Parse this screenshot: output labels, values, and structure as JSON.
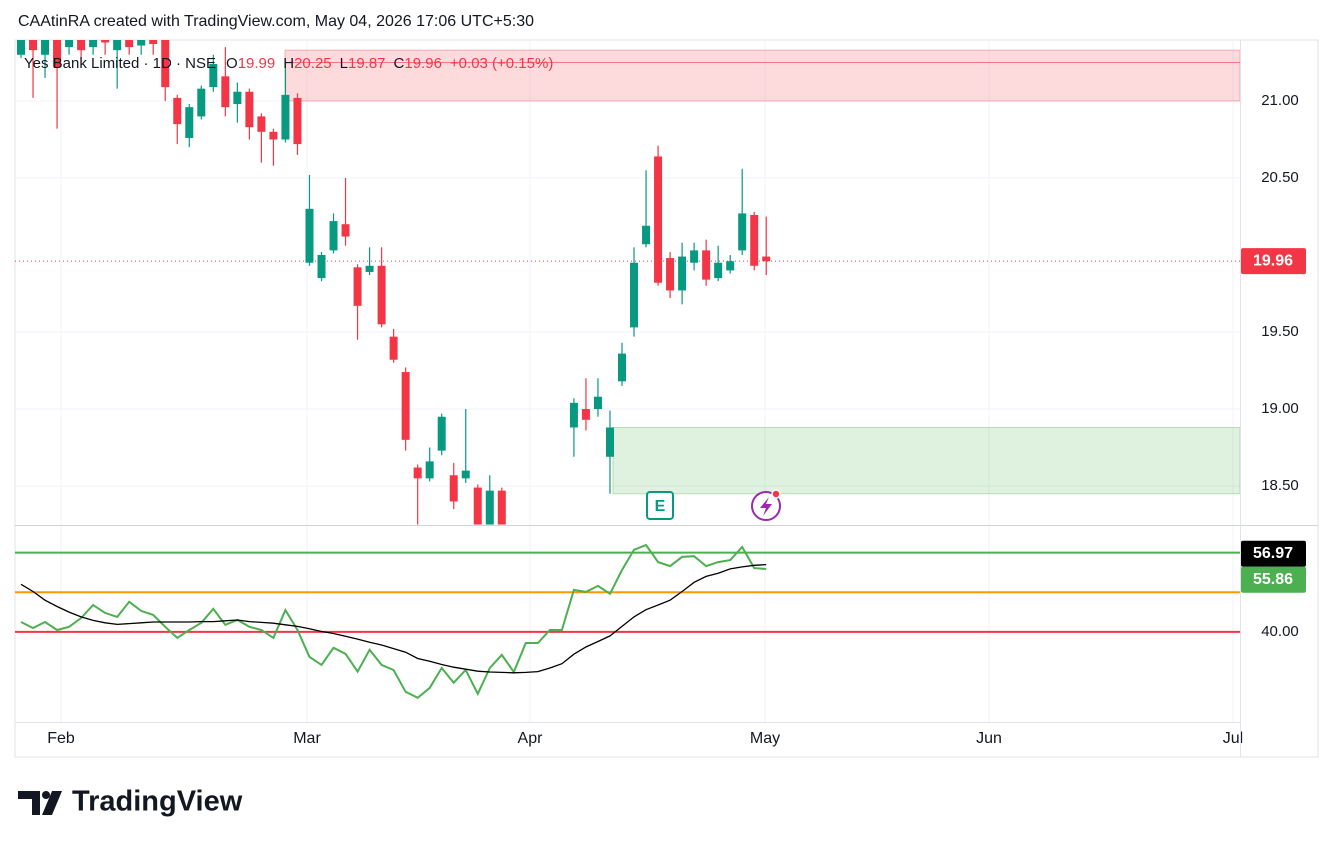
{
  "header": {
    "text": "CAAtinRA created with TradingView.com, May 04, 2026 17:06 UTC+5:30"
  },
  "footer": {
    "brand": "TradingView"
  },
  "chart_data": [
    {
      "type": "candlestick",
      "title": "Yes Bank Limited · 1D · NSE",
      "legend_keys": [
        "O",
        "H",
        "L",
        "C"
      ],
      "change_label": "+0.03 (+0.15%)",
      "up_color": "#089981",
      "down_color": "#f23645",
      "open": [
        21.3,
        21.42,
        21.3,
        21.42,
        21.35,
        21.42,
        21.35,
        21.42,
        21.33,
        21.42,
        21.36,
        21.42,
        21.4,
        21.02,
        20.76,
        20.9,
        21.09,
        21.16,
        20.98,
        21.06,
        20.9,
        20.8,
        20.75,
        21.02,
        19.95,
        19.85,
        20.03,
        20.2,
        19.92,
        19.89,
        19.93,
        19.47,
        19.24,
        18.62,
        18.55,
        18.73,
        18.57,
        18.55,
        18.49,
        18.25,
        18.47,
        null,
        null,
        null,
        null,
        null,
        18.88,
        19.0,
        19.0,
        18.69,
        19.18,
        19.53,
        20.07,
        20.64,
        19.98,
        19.77,
        19.95,
        20.03,
        19.85,
        19.9,
        20.03,
        20.26,
        19.99
      ],
      "high": [
        21.45,
        21.45,
        21.45,
        21.45,
        21.45,
        21.45,
        21.45,
        21.45,
        21.45,
        21.45,
        21.45,
        21.45,
        21.42,
        21.04,
        20.98,
        21.1,
        21.3,
        21.35,
        21.12,
        21.08,
        20.92,
        20.82,
        21.25,
        21.05,
        20.52,
        20.02,
        20.27,
        20.5,
        19.94,
        20.05,
        20.05,
        19.52,
        19.27,
        18.64,
        18.75,
        18.97,
        18.65,
        19.0,
        18.51,
        18.57,
        18.49,
        null,
        null,
        null,
        null,
        null,
        19.07,
        19.2,
        19.2,
        18.99,
        19.43,
        20.05,
        20.55,
        20.71,
        20.02,
        20.08,
        20.08,
        20.1,
        20.06,
        20.0,
        20.56,
        20.28,
        20.25
      ],
      "low": [
        21.28,
        21.02,
        21.15,
        20.82,
        21.3,
        21.25,
        21.3,
        21.3,
        21.08,
        21.3,
        21.3,
        21.3,
        21.0,
        20.72,
        20.7,
        20.88,
        21.06,
        20.9,
        20.86,
        20.75,
        20.6,
        20.58,
        20.73,
        20.65,
        19.93,
        19.83,
        20.01,
        20.06,
        19.45,
        19.87,
        19.53,
        19.3,
        18.73,
        18.25,
        18.53,
        18.7,
        18.35,
        18.52,
        18.25,
        18.25,
        18.25,
        null,
        null,
        null,
        null,
        null,
        18.69,
        18.86,
        18.95,
        18.45,
        19.15,
        19.47,
        20.05,
        19.8,
        19.72,
        19.68,
        19.9,
        19.8,
        19.83,
        19.88,
        20.0,
        19.9,
        19.87
      ],
      "close": [
        21.42,
        21.33,
        21.42,
        21.22,
        21.42,
        21.33,
        21.42,
        21.38,
        21.42,
        21.35,
        21.42,
        21.37,
        21.09,
        20.85,
        20.96,
        21.08,
        21.24,
        20.96,
        21.06,
        20.83,
        20.8,
        20.75,
        21.04,
        20.72,
        20.3,
        20.0,
        20.22,
        20.12,
        19.67,
        19.93,
        19.55,
        19.32,
        18.8,
        18.55,
        18.66,
        18.95,
        18.4,
        18.6,
        18.25,
        18.47,
        18.25,
        null,
        null,
        null,
        null,
        null,
        19.04,
        18.93,
        19.08,
        18.88,
        19.36,
        19.95,
        20.19,
        19.82,
        19.77,
        19.99,
        20.03,
        19.84,
        19.95,
        19.96,
        20.27,
        19.93,
        19.96
      ],
      "ylim": [
        18.247,
        21.396
      ],
      "yticks": [
        {
          "value": 21,
          "label": "21.00"
        },
        {
          "value": 20.5,
          "label": "20.50"
        },
        {
          "value": 19.5,
          "label": "19.50"
        },
        {
          "value": 19,
          "label": "19.00"
        },
        {
          "value": 18.5,
          "label": "18.50"
        }
      ],
      "x_labels": [
        "Feb",
        "Mar",
        "Apr",
        "May",
        "Jun",
        "Jul"
      ],
      "zones": [
        {
          "top": 21.33,
          "bottom": 21.0,
          "line": 21.25,
          "color": "#f23645"
        },
        {
          "top": 18.88,
          "bottom": 18.45,
          "color": "#4caf50"
        }
      ],
      "grid": true,
      "earnings_label": "E"
    },
    {
      "type": "line",
      "series": [
        {
          "color": "#4caf50",
          "values": [
            42.5,
            41,
            42.5,
            40.5,
            41.3,
            43.5,
            46.8,
            44.8,
            43.8,
            47.6,
            45.3,
            44.3,
            41.3,
            38.5,
            40.5,
            42.3,
            45.8,
            41.8,
            43,
            41.3,
            40.5,
            38.5,
            45.5,
            40.5,
            33.7,
            31.7,
            36,
            34.5,
            30,
            35.5,
            31.7,
            30.4,
            24.9,
            23.4,
            25.9,
            30.9,
            27.2,
            30.4,
            24.4,
            30.9,
            34.2,
            29.9,
            37.2,
            37.2,
            40.5,
            40.5,
            50.6,
            50.1,
            51.6,
            49.6,
            55.6,
            60.7,
            61.9,
            57.6,
            56.6,
            58.9,
            59.1,
            56.6,
            57.6,
            58.1,
            61.4,
            56.1,
            55.86
          ]
        },
        {
          "color": "#000000",
          "values": [
            52,
            50.2,
            48,
            46.4,
            45,
            43.8,
            42.9,
            42.3,
            41.9,
            42.1,
            42.3,
            42.5,
            42.5,
            42.5,
            42.5,
            42.6,
            42.6,
            42.8,
            43,
            42.6,
            42.4,
            42.2,
            41.8,
            41.4,
            40.8,
            40.1,
            39.6,
            38.9,
            38.2,
            37.4,
            36.7,
            35.8,
            34.9,
            33.3,
            32.6,
            31.8,
            31.1,
            30.6,
            30.1,
            29.9,
            29.8,
            29.7,
            29.8,
            30,
            30.9,
            32,
            34.4,
            36.2,
            37.6,
            39,
            41.4,
            43.8,
            45.6,
            46.8,
            48,
            50.2,
            52.5,
            54,
            54.8,
            55.9,
            56.4,
            56.8,
            56.97
          ]
        }
      ],
      "levels": [
        {
          "value": 60,
          "color": "#4caf50"
        },
        {
          "value": 50,
          "color": "#ff9800"
        },
        {
          "value": 40,
          "color": "#f23645"
        }
      ],
      "ylim": [
        17.3,
        66.7
      ],
      "yticks": [
        {
          "value": 40,
          "label": "40.00"
        }
      ]
    }
  ]
}
